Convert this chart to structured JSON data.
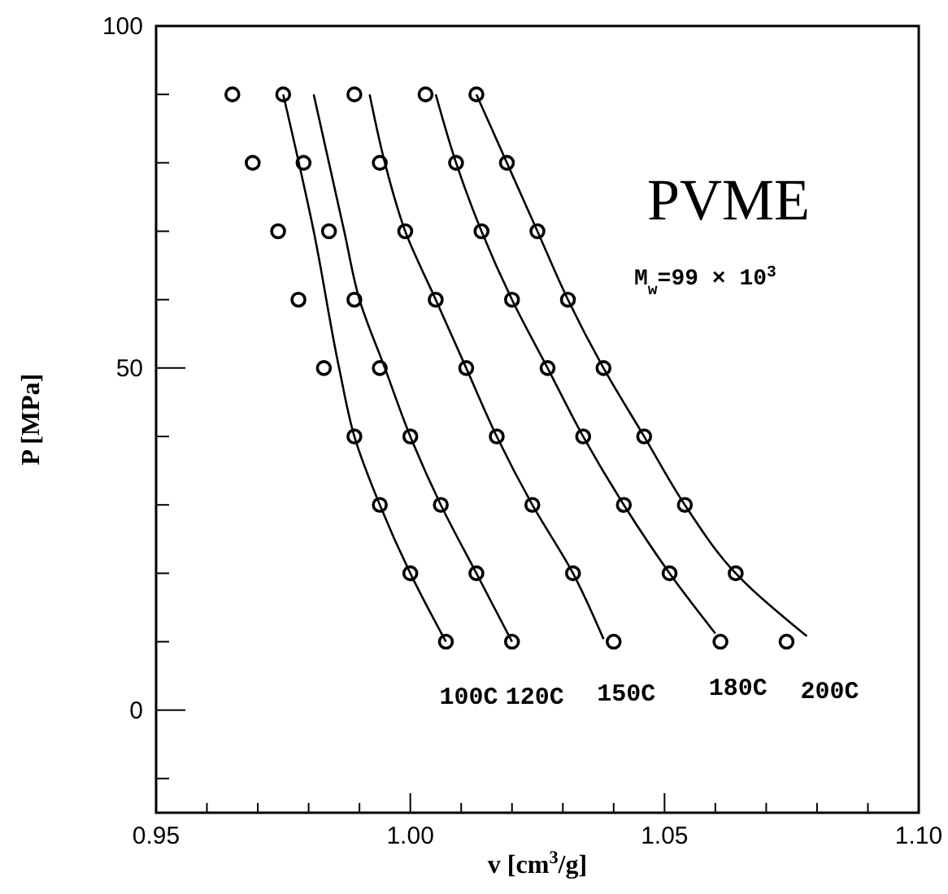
{
  "chart_data": {
    "type": "scatter",
    "xlabel": "v  [cm$^{3}$/g]",
    "ylabel": "P  [MPa]",
    "annotations": [
      "PVME",
      "M$_{w}$=99 × 10$^{3}$"
    ],
    "xlim": [
      0.95,
      1.1
    ],
    "ylim": [
      -15,
      100
    ],
    "xticks": [
      {
        "value": 0.95,
        "label": "0.95"
      },
      {
        "value": 0.96,
        "label": null
      },
      {
        "value": 0.97,
        "label": null
      },
      {
        "value": 0.98,
        "label": null
      },
      {
        "value": 0.99,
        "label": null
      },
      {
        "value": 1.0,
        "label": "1.00"
      },
      {
        "value": 1.01,
        "label": null
      },
      {
        "value": 1.02,
        "label": null
      },
      {
        "value": 1.03,
        "label": null
      },
      {
        "value": 1.04,
        "label": null
      },
      {
        "value": 1.05,
        "label": "1.05"
      },
      {
        "value": 1.06,
        "label": null
      },
      {
        "value": 1.07,
        "label": null
      },
      {
        "value": 1.08,
        "label": null
      },
      {
        "value": 1.09,
        "label": null
      },
      {
        "value": 1.1,
        "label": "1.10"
      }
    ],
    "yticks": [
      {
        "value": -10,
        "label": null
      },
      0,
      {
        "value": 10,
        "label": null
      },
      {
        "value": 20,
        "label": null
      },
      {
        "value": 30,
        "label": null
      },
      {
        "value": 40,
        "label": null
      },
      50,
      {
        "value": 60,
        "label": null
      },
      {
        "value": 70,
        "label": null
      },
      {
        "value": 80,
        "label": null
      },
      {
        "value": 90,
        "label": null
      },
      100
    ],
    "marker": "circle",
    "grid": false,
    "series": [
      {
        "color": "#000000",
        "x": [
          0.965,
          0.969,
          0.974,
          0.978,
          0.983,
          0.989,
          0.994,
          1.0,
          1.007
        ],
        "values": [
          90,
          80,
          70,
          60,
          50,
          40,
          30,
          20,
          10
        ]
      },
      {
        "color": "#000000",
        "x": [
          0.975,
          0.979,
          0.984,
          0.989,
          0.994,
          1.0,
          1.006,
          1.013,
          1.02
        ],
        "values": [
          90,
          80,
          70,
          60,
          50,
          40,
          30,
          20,
          10
        ]
      },
      {
        "color": "#000000",
        "x": [
          0.989,
          0.994,
          0.999,
          1.005,
          1.011,
          1.017,
          1.024,
          1.032,
          1.04
        ],
        "values": [
          90,
          80,
          70,
          60,
          50,
          40,
          30,
          20,
          10
        ]
      },
      {
        "color": "#000000",
        "x": [
          1.003,
          1.009,
          1.014,
          1.02,
          1.027,
          1.034,
          1.042,
          1.051,
          1.061
        ],
        "values": [
          90,
          80,
          70,
          60,
          50,
          40,
          30,
          20,
          10
        ]
      },
      {
        "color": "#000000",
        "x": [
          1.013,
          1.019,
          1.025,
          1.031,
          1.038,
          1.046,
          1.054,
          1.064,
          1.074
        ],
        "values": [
          90,
          80,
          70,
          60,
          50,
          40,
          30,
          20,
          10
        ]
      },
      {
        "type": "line",
        "marker": "none",
        "name": "100C",
        "color": "#000000",
        "x": [
          0.975,
          0.981,
          0.986,
          0.989,
          0.994,
          1.0,
          1.007
        ],
        "values": [
          90,
          70,
          50,
          40,
          30,
          20,
          10
        ]
      },
      {
        "type": "line",
        "marker": "none",
        "name": "120C",
        "color": "#000000",
        "x": [
          0.981,
          0.984,
          0.987,
          0.99,
          0.995,
          1.0,
          1.006,
          1.013,
          1.02
        ],
        "values": [
          90,
          80,
          70,
          60,
          50,
          40,
          30,
          20,
          10
        ]
      },
      {
        "type": "line",
        "marker": "none",
        "name": "150C",
        "color": "#000000",
        "x": [
          0.992,
          0.995,
          0.999,
          1.005,
          1.011,
          1.017,
          1.024,
          1.032,
          1.038
        ],
        "values": [
          90,
          80,
          70,
          60,
          50,
          40,
          30,
          20,
          10.4
        ]
      },
      {
        "type": "line",
        "marker": "none",
        "name": "180C",
        "color": "#000000",
        "x": [
          1.005,
          1.009,
          1.014,
          1.02,
          1.027,
          1.034,
          1.042,
          1.051,
          1.06
        ],
        "values": [
          90,
          80,
          70,
          60,
          50,
          40,
          30,
          20,
          11.2
        ]
      },
      {
        "type": "line",
        "marker": "none",
        "name": "200C",
        "color": "#000000",
        "x": [
          1.013,
          1.019,
          1.025,
          1.031,
          1.038,
          1.046,
          1.054,
          1.064,
          1.078
        ],
        "values": [
          90,
          80,
          70,
          60,
          50,
          40,
          30,
          20,
          10.8
        ]
      }
    ]
  }
}
